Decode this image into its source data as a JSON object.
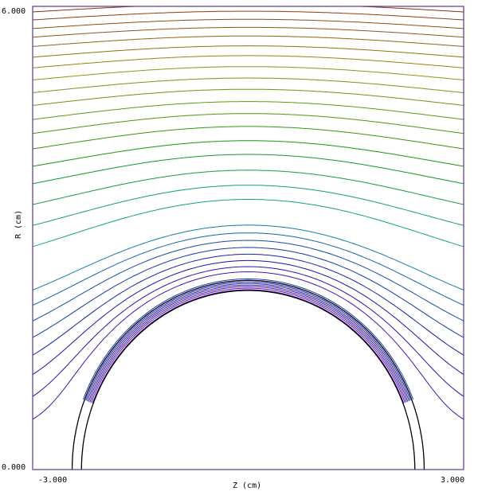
{
  "chart_data": {
    "type": "contour",
    "xlabel": "Z (cm)",
    "ylabel": "R (cm)",
    "xlim": [
      -3.0,
      3.0
    ],
    "ylim": [
      0.0,
      6.0
    ],
    "x_tick_labels": [
      "-3.000",
      "3.000"
    ],
    "y_tick_labels": [
      "0.000",
      "6.000"
    ],
    "x_ticks": [
      -3.0,
      3.0
    ],
    "y_ticks": [
      0.0,
      6.0
    ],
    "geometry": {
      "sphere_center": [
        0.0,
        0.0
      ],
      "outer_radius": 2.45,
      "inner_radius": 2.32
    },
    "contour_levels": [
      0.32,
      0.5,
      0.7,
      0.9,
      1.1,
      1.3,
      1.5,
      1.7,
      2.3,
      2.6,
      2.9,
      3.2,
      3.45,
      3.7,
      3.92,
      4.12,
      4.32,
      4.5,
      4.68,
      4.85,
      5.0,
      5.15,
      5.28,
      5.4,
      5.52,
      5.63,
      5.73,
      5.83,
      5.92,
      5.99
    ],
    "inner_shell_levels": [
      2.33,
      2.35,
      2.37,
      2.39,
      2.41,
      2.43,
      2.45,
      2.47
    ],
    "colors": {
      "low": "#8a2be2",
      "high": "#8b0000",
      "frame": "#5a3a8a"
    }
  }
}
